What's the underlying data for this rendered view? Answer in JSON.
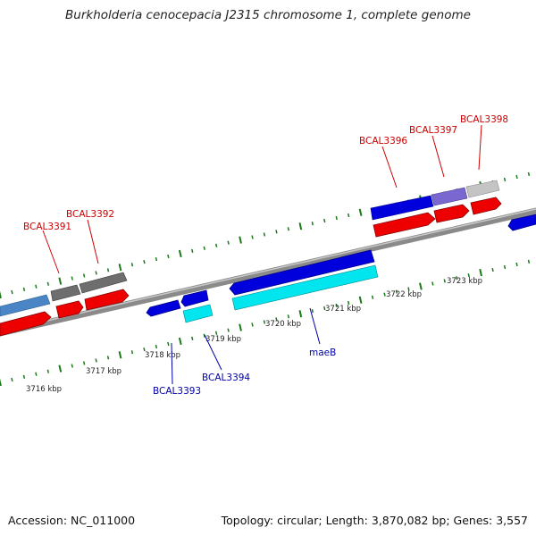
{
  "title": "Burkholderia cenocepacia J2315 chromosome 1, complete genome",
  "footer": {
    "accession": "Accession: NC_011000",
    "summary": "Topology: circular; Length: 3,870,082 bp; Genes: 3,557"
  },
  "colors": {
    "backbone": "#808080",
    "tick": "#1a7a1a",
    "cds_forward": "#0000dd",
    "cds_reverse": "#ee0000",
    "label_forward": "#0000aa",
    "label_reverse": "#cc0000",
    "rna": "#00e5ee",
    "pseudo_grey": "#6e6e6e",
    "light_grey": "#c4c4c4",
    "steel_blue": "#4a86c5",
    "slate_blue": "#7a68d0"
  },
  "kbp_labels": [
    "3716 kbp",
    "3717 kbp",
    "3718 kbp",
    "3719 kbp",
    "3720 kbp",
    "3721 kbp",
    "3722 kbp",
    "3723 kbp"
  ],
  "gene_labels": [
    {
      "name": "BCAL3391",
      "strand": "reverse"
    },
    {
      "name": "BCAL3392",
      "strand": "reverse"
    },
    {
      "name": "BCAL3393",
      "strand": "forward"
    },
    {
      "name": "BCAL3394",
      "strand": "forward"
    },
    {
      "name": "maeB",
      "strand": "forward"
    },
    {
      "name": "BCAL3396",
      "strand": "reverse"
    },
    {
      "name": "BCAL3397",
      "strand": "reverse"
    },
    {
      "name": "BCAL3398",
      "strand": "reverse"
    }
  ]
}
